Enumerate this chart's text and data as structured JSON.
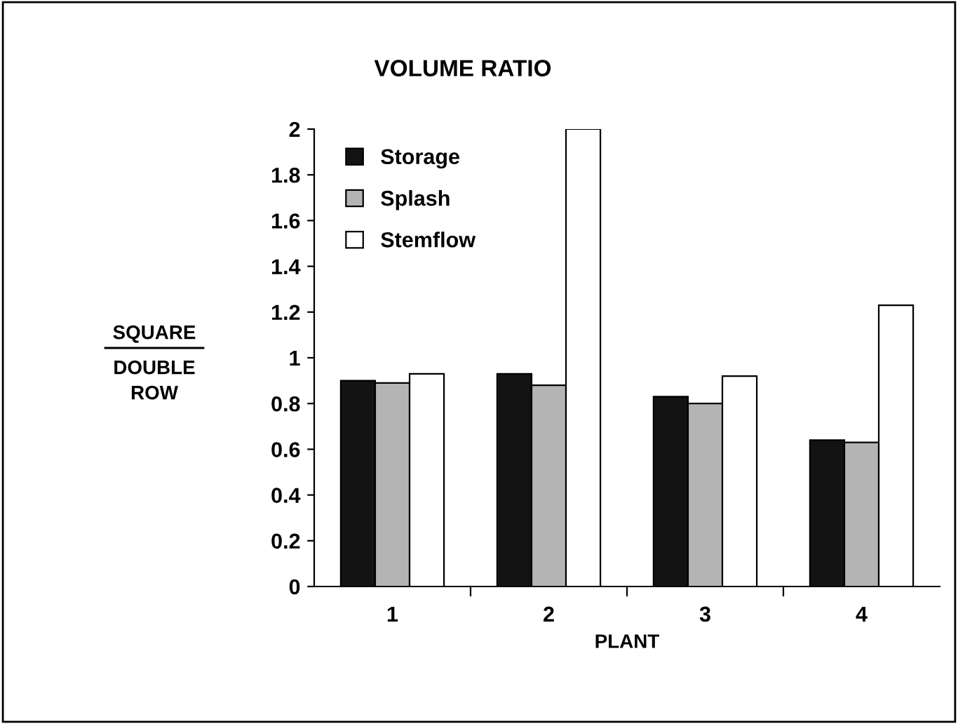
{
  "chart_data": {
    "type": "bar",
    "title": "VOLUME RATIO",
    "xlabel": "PLANT",
    "ylabel": "SQUARE\nDOUBLE\nROW",
    "categories": [
      "1",
      "2",
      "3",
      "4"
    ],
    "series": [
      {
        "name": "Storage",
        "color": "#131313",
        "values": [
          0.9,
          0.93,
          0.83,
          0.64
        ]
      },
      {
        "name": "Splash",
        "color": "#b4b4b4",
        "values": [
          0.89,
          0.88,
          0.8,
          0.63
        ]
      },
      {
        "name": "Stemflow",
        "color": "#ffffff",
        "values": [
          0.93,
          2,
          0.92,
          1.23
        ]
      }
    ],
    "ylim": [
      0,
      2
    ],
    "yticks": [
      0,
      0.2,
      0.4,
      0.6,
      0.8,
      1,
      1.2,
      1.4,
      1.6,
      1.8,
      2
    ],
    "grid": false,
    "legend": "top left"
  }
}
